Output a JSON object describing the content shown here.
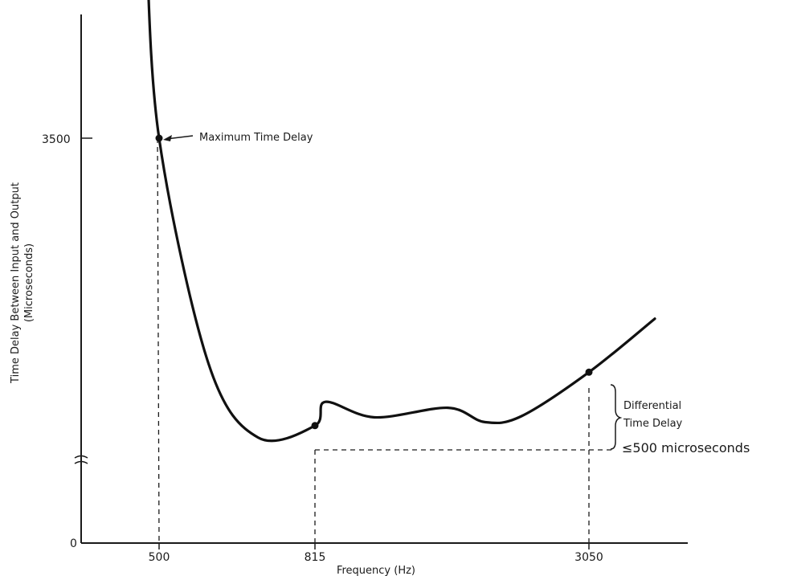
{
  "chart_data": {
    "type": "line",
    "title": "",
    "xlabel": "Frequency (Hz)",
    "ylabel": "Time Delay Between Input and Output",
    "ylabel_units": "(Microseconds)",
    "x_ticks": [
      "500",
      "815",
      "3050"
    ],
    "y_ticks": [
      "0",
      "3500"
    ],
    "axis_break_on_y": true,
    "grid": false,
    "series": [
      {
        "points": [
          {
            "x": 430,
            "y": 5200
          },
          {
            "x": 500,
            "y": 3500
          },
          {
            "x": 600,
            "y": 1600
          },
          {
            "x": 700,
            "y": 980
          },
          {
            "x": 815,
            "y": 1080
          },
          {
            "x": 900,
            "y": 1280
          },
          {
            "x": 1300,
            "y": 1150
          },
          {
            "x": 1900,
            "y": 1230
          },
          {
            "x": 2200,
            "y": 1110
          },
          {
            "x": 2500,
            "y": 1160
          },
          {
            "x": 3050,
            "y": 1530
          },
          {
            "x": 3700,
            "y": 1980
          }
        ]
      }
    ],
    "markers": [
      {
        "x": 500,
        "y": 3500
      },
      {
        "x": 815,
        "y": 1080
      },
      {
        "x": 3050,
        "y": 1530
      }
    ],
    "annotations": {
      "max_delay": "Maximum Time Delay",
      "differential_line1": "Differential",
      "differential_line2": "Time Delay",
      "differential_limit": "≤500 microseconds"
    }
  }
}
